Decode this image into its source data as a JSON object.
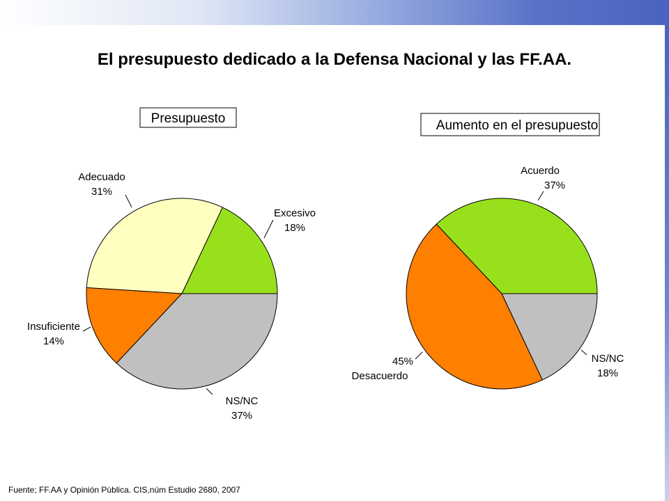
{
  "page_title": "El presupuesto dedicado a la Defensa Nacional y las FF.AA.",
  "footer": "Fuente; FF.AA y Opinión Pública. CIS,núm Estudio 2680, 2007",
  "colors": {
    "green": "#99e01c",
    "yellow": "#ffffc0",
    "orange": "#ff7f00",
    "gray": "#c0c0c0"
  },
  "chart_data": [
    {
      "type": "pie",
      "title": "Presupuesto",
      "slices": [
        {
          "label": "Excesivo",
          "value": 18,
          "value_label": "18%",
          "color": "#99e01c"
        },
        {
          "label": "Adecuado",
          "value": 31,
          "value_label": "31%",
          "color": "#ffffc0"
        },
        {
          "label": "Insuficiente",
          "value": 14,
          "value_label": "14%",
          "color": "#ff7f00"
        },
        {
          "label": "NS/NC",
          "value": 37,
          "value_label": "37%",
          "color": "#c0c0c0"
        }
      ]
    },
    {
      "type": "pie",
      "title": "Aumento en el presupuesto",
      "slices": [
        {
          "label": "Acuerdo",
          "value": 37,
          "value_label": "37%",
          "color": "#99e01c"
        },
        {
          "label": "Desacuerdo",
          "value": 45,
          "value_label": "45%",
          "color": "#ff7f00"
        },
        {
          "label": "NS/NC",
          "value": 18,
          "value_label": "18%",
          "color": "#c0c0c0"
        }
      ]
    }
  ]
}
